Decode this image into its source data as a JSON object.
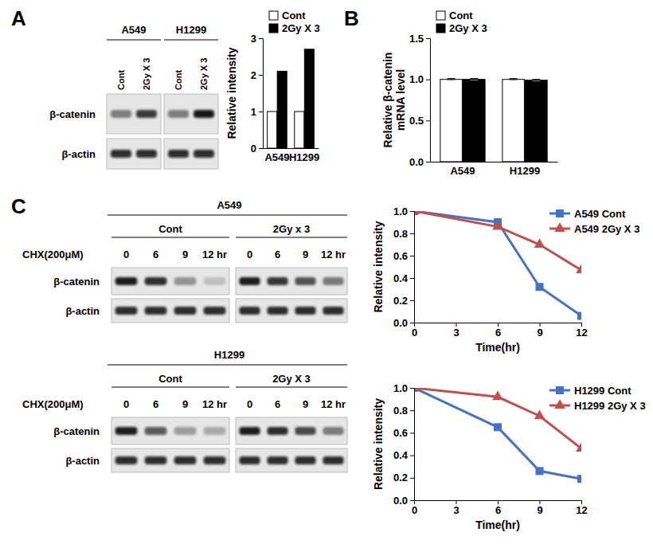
{
  "chart_data": [
    {
      "type": "bar",
      "categories": [
        "A549",
        "H1299"
      ],
      "series": [
        {
          "name": "Cont",
          "color": "#ffffff",
          "values": [
            1,
            1
          ]
        },
        {
          "name": "2Gy X 3",
          "color": "#000000",
          "values": [
            2.1,
            2.7
          ]
        }
      ],
      "y_label": "Relative intensity",
      "ylim": [
        0,
        3
      ],
      "yticks": [
        0,
        1,
        2,
        3
      ],
      "legend": "top-left"
    },
    {
      "type": "bar",
      "categories": [
        "A549",
        "H1299"
      ],
      "series": [
        {
          "name": "Cont",
          "color": "#ffffff",
          "values": [
            1.0,
            1.0
          ],
          "errors": [
            0.01,
            0.01
          ]
        },
        {
          "name": "2Gy X 3",
          "color": "#000000",
          "values": [
            1.0,
            0.99
          ],
          "errors": [
            0.01,
            0.01
          ]
        }
      ],
      "y_label": "Relative β-catenin mRNA level",
      "ylim": [
        0,
        1.5
      ],
      "yticks": [
        {
          "value": 0,
          "label": "0.0"
        },
        {
          "value": 0.5,
          "label": "0.5"
        },
        {
          "value": 1,
          "label": "1.0"
        },
        {
          "value": 1.5,
          "label": "1.5"
        }
      ],
      "legend": "top-left"
    },
    {
      "type": "line",
      "x": [
        0,
        6,
        9,
        12
      ],
      "series": [
        {
          "name": "A549 Cont",
          "color": "#4472c4",
          "marker": "square",
          "line_style": "solid",
          "values": [
            1.0,
            0.9,
            0.32,
            0.06
          ]
        },
        {
          "name": "A549 2Gy X 3",
          "color": "#c0504d",
          "marker": "triangle",
          "line_style": "solid",
          "values": [
            1.0,
            0.86,
            0.7,
            0.47
          ]
        }
      ],
      "x_label": "Time(hr)",
      "y_label": "Relative intensity",
      "xlim": [
        0,
        12
      ],
      "xticks": [
        0,
        3,
        6,
        9,
        12
      ],
      "ylim": [
        0,
        1
      ],
      "yticks": [
        {
          "value": 0,
          "label": "0.0"
        },
        {
          "value": 0.2,
          "label": "0.2"
        },
        {
          "value": 0.4,
          "label": "0.4"
        },
        {
          "value": 0.6,
          "label": "0.6"
        },
        {
          "value": 0.8,
          "label": "0.8"
        },
        {
          "value": 1,
          "label": "1.0"
        }
      ],
      "legend": "top-right"
    },
    {
      "type": "line",
      "x": [
        0,
        6,
        9,
        12
      ],
      "series": [
        {
          "name": "H1299 Cont",
          "color": "#4472c4",
          "marker": "square",
          "line_style": "solid",
          "values": [
            1.0,
            0.65,
            0.26,
            0.19
          ]
        },
        {
          "name": "H1299 2Gy X 3",
          "color": "#c0504d",
          "marker": "triangle",
          "line_style": "solid",
          "values": [
            1.0,
            0.92,
            0.75,
            0.46
          ]
        }
      ],
      "x_label": "Time(hr)",
      "y_label": "Relative intensity",
      "xlim": [
        0,
        12
      ],
      "xticks": [
        0,
        3,
        6,
        9,
        12
      ],
      "ylim": [
        0,
        1
      ],
      "yticks": [
        {
          "value": 0,
          "label": "0.0"
        },
        {
          "value": 0.2,
          "label": "0.2"
        },
        {
          "value": 0.4,
          "label": "0.4"
        },
        {
          "value": 0.6,
          "label": "0.6"
        },
        {
          "value": 0.8,
          "label": "0.8"
        },
        {
          "value": 1,
          "label": "1.0"
        }
      ],
      "legend": "top-right"
    }
  ],
  "figure": {
    "panel_labels": [
      "A",
      "B",
      "C"
    ],
    "blot_a": {
      "groups": [
        {
          "label": "A549",
          "lanes": [
            "Cont",
            "2Gy X 3"
          ]
        },
        {
          "label": "H1299",
          "lanes": [
            "Cont",
            "2Gy X 3"
          ]
        }
      ],
      "rows": [
        "β-catenin",
        "β-actin"
      ]
    },
    "blot_c": [
      {
        "label": "A549",
        "treatment": "CHX(200μM)",
        "conditions": [
          {
            "label": "Cont",
            "times": [
              "0",
              "6",
              "9",
              "12 hr"
            ]
          },
          {
            "label": "2Gy  x 3",
            "times": [
              "0",
              "6",
              "9",
              "12 hr"
            ]
          }
        ],
        "rows": [
          "β-catenin",
          "β-actin"
        ]
      },
      {
        "label": "H1299",
        "treatment": "CHX(200μM)",
        "conditions": [
          {
            "label": "Cont",
            "times": [
              "0",
              "6",
              "9",
              "12 hr"
            ]
          },
          {
            "label": "2Gy X 3",
            "times": [
              "0",
              "6",
              "9",
              "12 hr"
            ]
          }
        ],
        "rows": [
          "β-catenin",
          "β-actin"
        ]
      }
    ]
  }
}
